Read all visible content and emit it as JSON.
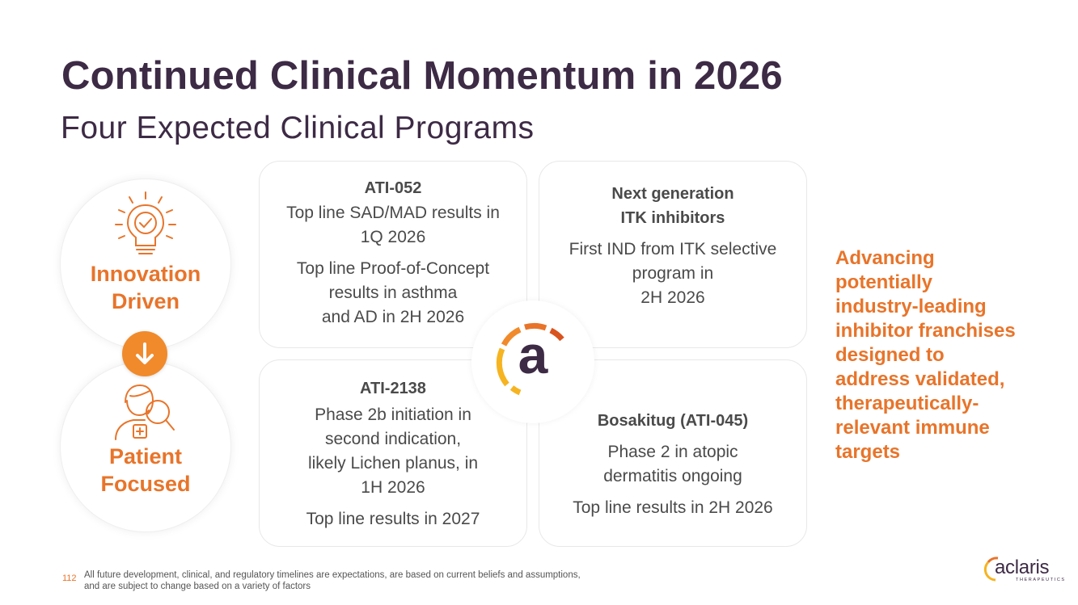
{
  "header": {
    "title": "Continued Clinical Momentum in 2026",
    "subtitle": "Four Expected Clinical Programs"
  },
  "pillars": {
    "innovation": {
      "icon": "lightbulb-check-icon",
      "line1": "Innovation",
      "line2": "Driven"
    },
    "arrow_icon": "arrow-down-icon",
    "patient": {
      "icon": "patient-magnifier-icon",
      "line1": "Patient",
      "line2": "Focused"
    }
  },
  "cards": {
    "ati052": {
      "title": "ATI-052",
      "p1": [
        "Top line SAD/MAD results in",
        "1Q 2026"
      ],
      "p2": [
        "Top line Proof-of-Concept",
        "results in asthma",
        "and AD in 2H 2026"
      ]
    },
    "itk": {
      "title": [
        "Next generation",
        "ITK inhibitors"
      ],
      "p1": [
        "First IND from ITK selective",
        "program in",
        "2H 2026"
      ]
    },
    "ati2138": {
      "title": "ATI-2138",
      "p1": [
        "Phase 2b initiation in",
        "second indication,",
        "likely Lichen planus, in",
        "1H 2026"
      ],
      "p2": [
        "Top line results in 2027"
      ]
    },
    "bosakitug": {
      "title": "Bosakitug (ATI-045)",
      "p1": [
        "Phase 2 in atopic",
        "dermatitis ongoing"
      ],
      "p2": [
        "Top line results in 2H 2026"
      ]
    }
  },
  "center_logo": {
    "letter": "a"
  },
  "sidebar": {
    "lines": [
      "Advancing",
      "potentially",
      "industry-leading",
      "inhibitor franchises",
      "designed to",
      "address validated,",
      "therapeutically-",
      "relevant immune",
      "targets"
    ]
  },
  "footer": {
    "page_number": "112",
    "note_line1": "All future development, clinical, and regulatory timelines are expectations, are based on current beliefs and assumptions,",
    "note_line2": "and are subject to change based on a variety of factors",
    "brand_name": "aclaris",
    "brand_sub": "THERAPEUTICS"
  },
  "colors": {
    "primary_dark": "#3d2a45",
    "accent_orange": "#e8742a",
    "badge_orange": "#f18a2b",
    "ring_yellow": "#f6b421"
  }
}
